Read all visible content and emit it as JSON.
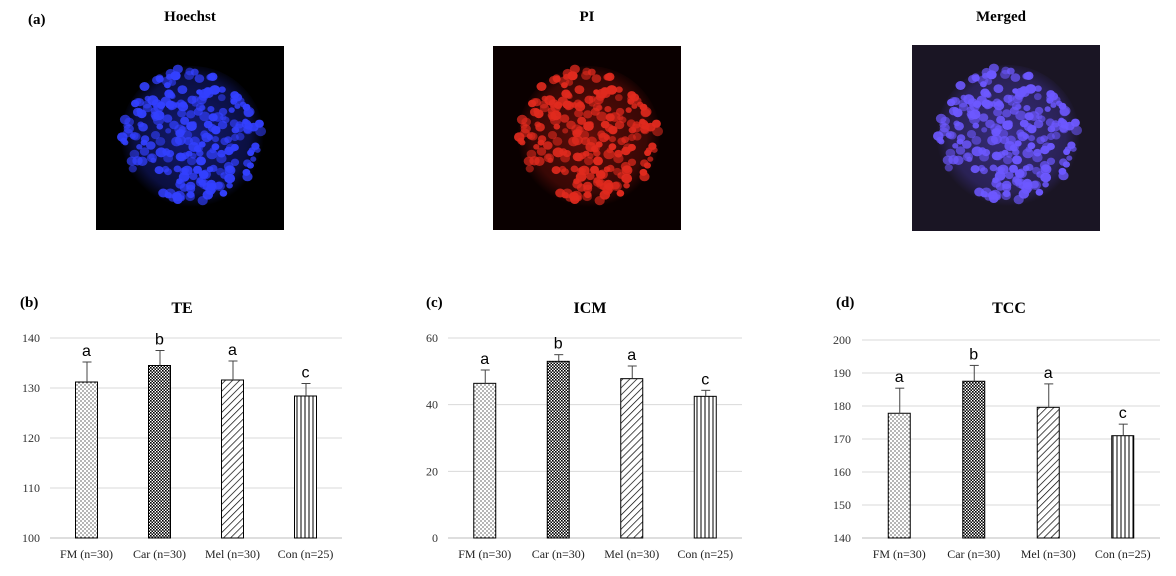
{
  "top": {
    "panel_label": "(a)",
    "images": [
      {
        "title": "Hoechst",
        "color": "#2b3cff",
        "bg": "#000000"
      },
      {
        "title": "PI",
        "color": "#d8281c",
        "bg": "#0a0000"
      },
      {
        "title": "Merged",
        "color": "#6a55ff",
        "bg": "#1a1524"
      }
    ]
  },
  "chart_data": [
    {
      "type": "bar",
      "panel_label": "(b)",
      "title": "TE",
      "categories": [
        "FM (n=30)",
        "Car (n=30)",
        "Mel (n=30)",
        "Con (n=25)"
      ],
      "values": [
        131.2,
        134.5,
        131.6,
        128.4
      ],
      "errors": [
        4.0,
        3.0,
        3.8,
        2.5
      ],
      "letters": [
        "a",
        "b",
        "a",
        "c"
      ],
      "ylim": [
        100,
        140
      ],
      "yticks": [
        "100",
        "110",
        "120",
        "130",
        "140"
      ],
      "grid": true
    },
    {
      "type": "bar",
      "panel_label": "(c)",
      "title": "ICM",
      "categories": [
        "FM (n=30)",
        "Car (n=30)",
        "Mel (n=30)",
        "Con (n=25)"
      ],
      "values": [
        46.4,
        53.0,
        47.8,
        42.5
      ],
      "errors": [
        4.0,
        2.0,
        3.8,
        1.8
      ],
      "letters": [
        "a",
        "b",
        "a",
        "c"
      ],
      "ylim": [
        0,
        60
      ],
      "yticks": [
        "0",
        "20",
        "40",
        "60"
      ],
      "grid": true
    },
    {
      "type": "bar",
      "panel_label": "(d)",
      "title": "TCC",
      "categories": [
        "FM (n=30)",
        "Car (n=30)",
        "Mel (n=30)",
        "Con (n=25)"
      ],
      "values": [
        177.8,
        187.5,
        179.6,
        171.0
      ],
      "errors": [
        7.6,
        4.8,
        7.1,
        3.5
      ],
      "letters": [
        "a",
        "b",
        "a",
        "c"
      ],
      "ylim": [
        140,
        200
      ],
      "yticks": [
        "140",
        "150",
        "160",
        "170",
        "180",
        "190",
        "200"
      ],
      "grid": true
    }
  ]
}
